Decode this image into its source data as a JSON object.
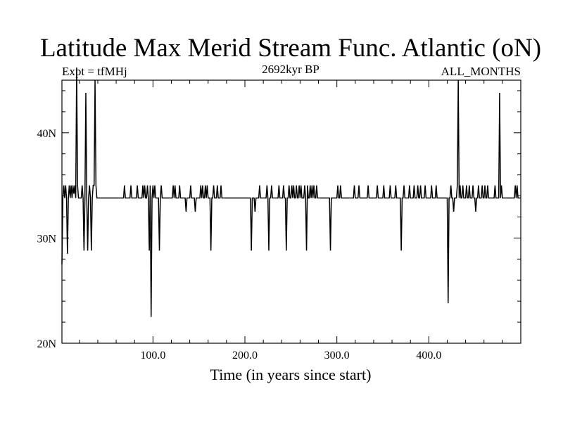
{
  "chart_data": {
    "type": "line",
    "title": "Latitude Max Merid Stream Func. Atlantic (oN)",
    "subtitle_left": "Expt = tfMHj",
    "subtitle_center": "2692kyr BP",
    "subtitle_right": "ALL_MONTHS",
    "xlabel": "Time (in years since start)",
    "ylabel": "",
    "xlim": [
      1,
      500
    ],
    "ylim": [
      20,
      45
    ],
    "x_major_ticks": [
      100,
      200,
      300,
      400
    ],
    "x_tick_labels": [
      "100.0",
      "200.0",
      "300.0",
      "400.0"
    ],
    "y_major_ticks": [
      20,
      30,
      40
    ],
    "y_tick_labels": [
      "20N",
      "30N",
      "40N"
    ],
    "grid": false,
    "line_color": "#000000",
    "series": [
      {
        "baseline": 33.8,
        "events": [
          [
            1,
            27.5
          ],
          [
            3,
            35
          ],
          [
            5,
            35
          ],
          [
            7,
            28.5
          ],
          [
            9,
            35
          ],
          [
            11,
            35
          ],
          [
            13,
            35
          ],
          [
            14,
            34.2
          ],
          [
            15,
            35
          ],
          [
            17,
            46.2
          ],
          [
            18,
            35
          ],
          [
            21,
            33.8
          ],
          [
            23,
            35
          ],
          [
            25,
            28.8
          ],
          [
            27,
            43.8
          ],
          [
            29,
            28.8
          ],
          [
            31,
            35
          ],
          [
            33,
            28.8
          ],
          [
            35,
            35
          ],
          [
            36,
            35
          ],
          [
            37,
            45
          ],
          [
            38,
            35
          ],
          [
            69,
            35
          ],
          [
            76,
            35
          ],
          [
            83,
            35
          ],
          [
            89,
            35
          ],
          [
            91,
            35
          ],
          [
            94,
            35
          ],
          [
            96,
            28.8
          ],
          [
            97,
            35
          ],
          [
            98,
            22.5
          ],
          [
            100,
            35
          ],
          [
            102,
            35
          ],
          [
            107,
            28.8
          ],
          [
            109,
            35
          ],
          [
            122,
            35
          ],
          [
            124,
            35
          ],
          [
            129,
            35
          ],
          [
            136,
            32.5
          ],
          [
            141,
            35
          ],
          [
            146,
            32.5
          ],
          [
            152,
            35
          ],
          [
            154,
            35
          ],
          [
            157,
            35
          ],
          [
            159,
            35
          ],
          [
            163,
            28.8
          ],
          [
            166,
            35
          ],
          [
            170,
            35
          ],
          [
            174,
            35
          ],
          [
            207,
            28.8
          ],
          [
            211,
            32.5
          ],
          [
            216,
            35
          ],
          [
            224,
            35
          ],
          [
            226,
            28.8
          ],
          [
            229,
            35
          ],
          [
            237,
            35
          ],
          [
            242,
            35
          ],
          [
            245,
            28.8
          ],
          [
            248,
            35
          ],
          [
            251,
            35
          ],
          [
            253,
            35
          ],
          [
            256,
            35
          ],
          [
            259,
            35
          ],
          [
            261,
            35
          ],
          [
            265,
            35
          ],
          [
            267,
            28.8
          ],
          [
            268,
            35
          ],
          [
            271,
            35
          ],
          [
            273,
            35
          ],
          [
            275,
            35
          ],
          [
            278,
            35
          ],
          [
            293,
            28.8
          ],
          [
            301,
            35
          ],
          [
            304,
            35
          ],
          [
            319,
            35
          ],
          [
            324,
            35
          ],
          [
            334,
            35
          ],
          [
            344,
            35
          ],
          [
            351,
            35
          ],
          [
            358,
            35
          ],
          [
            364,
            35
          ],
          [
            370,
            28.8
          ],
          [
            373,
            35
          ],
          [
            379,
            35
          ],
          [
            384,
            35
          ],
          [
            388,
            35
          ],
          [
            391,
            35
          ],
          [
            396,
            35
          ],
          [
            403,
            35
          ],
          [
            408,
            35
          ],
          [
            421,
            23.8
          ],
          [
            424,
            35
          ],
          [
            427,
            32.5
          ],
          [
            431,
            35
          ],
          [
            432,
            45
          ],
          [
            434,
            35
          ],
          [
            437,
            35
          ],
          [
            441,
            35
          ],
          [
            444,
            35
          ],
          [
            448,
            35
          ],
          [
            451,
            32.5
          ],
          [
            454,
            35
          ],
          [
            458,
            35
          ],
          [
            461,
            35
          ],
          [
            464,
            35
          ],
          [
            472,
            35
          ],
          [
            477,
            43.8
          ],
          [
            479,
            35
          ],
          [
            494,
            35
          ],
          [
            496,
            35
          ]
        ]
      }
    ]
  }
}
